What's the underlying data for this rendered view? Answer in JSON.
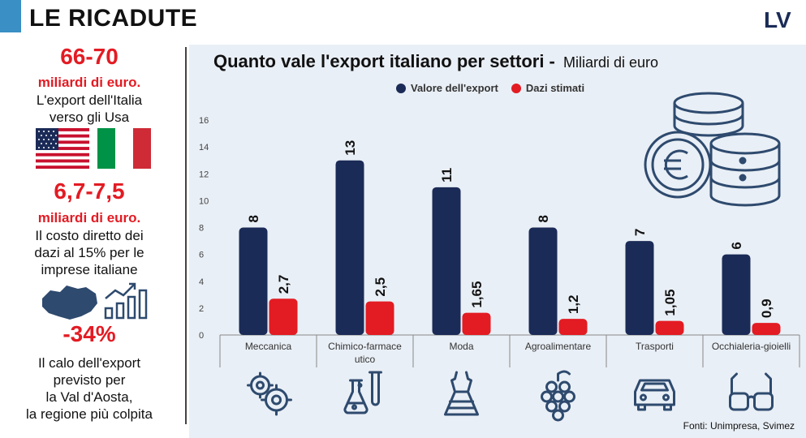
{
  "header": {
    "title": "LE RICADUTE",
    "logo_text": "LV"
  },
  "sidebar": {
    "stat1": {
      "value": "66-70",
      "unit": "miliardi di euro.",
      "text1": "L'export dell'Italia",
      "text2": "verso gli Usa"
    },
    "stat2": {
      "value": "6,7-7,5",
      "unit": "miliardi di euro.",
      "text1": "Il costo diretto dei",
      "text2": "dazi al 15% per le",
      "text3": "imprese italiane"
    },
    "stat3": {
      "value": "-34%",
      "text1": "Il calo dell'export",
      "text2": "previsto per",
      "text3": "la Val d'Aosta,",
      "text4": "la regione più colpita"
    }
  },
  "colors": {
    "export": "#1b2b57",
    "dazi": "#e31b23",
    "accent_red": "#e31b23",
    "header_blue": "#3a8fc4",
    "icon": "#2e4a6e"
  },
  "chart_data": {
    "type": "bar",
    "title": "Quanto vale l'export italiano per settori -",
    "subtitle": "Miliardi di euro",
    "categories": [
      "Meccanica",
      "Chimico-farmace utico",
      "Moda",
      "Agroalimentare",
      "Trasporti",
      "Occhialeria-gioielli"
    ],
    "series": [
      {
        "name": "Valore dell'export",
        "values": [
          8,
          13,
          11,
          8,
          7,
          6
        ],
        "labels": [
          "8",
          "13",
          "11",
          "8",
          "7",
          "6"
        ]
      },
      {
        "name": "Dazi stimati",
        "values": [
          2.7,
          2.5,
          1.65,
          1.2,
          1.05,
          0.9
        ],
        "labels": [
          "2,7",
          "2,5",
          "1,65",
          "1,2",
          "1,05",
          "0,9"
        ]
      }
    ],
    "yticks": [
      0,
      2,
      4,
      6,
      8,
      10,
      12,
      14,
      16
    ],
    "ylim": [
      0,
      16
    ],
    "legend_position": "top",
    "grid": false
  },
  "category_icons": [
    "gears-icon",
    "flask-icon",
    "dress-icon",
    "grapes-icon",
    "car-icon",
    "glasses-icon"
  ],
  "source": "Fonti: Unimpresa, Svimez"
}
